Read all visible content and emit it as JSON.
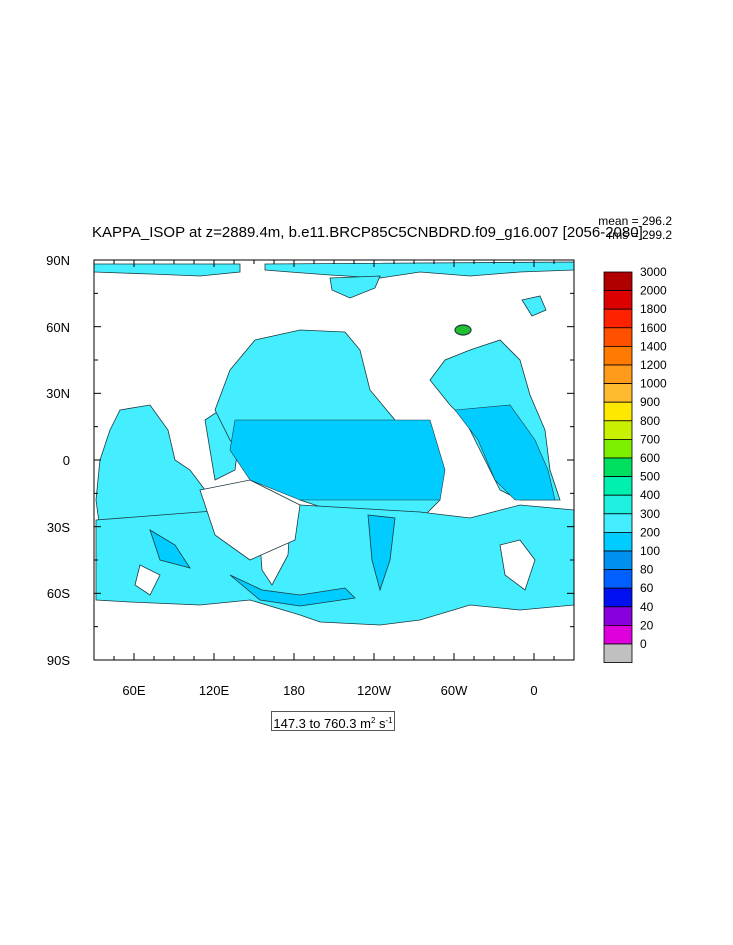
{
  "title": "KAPPA_ISOP at z=2889.4m, b.e11.BRCP85C5CNBDRD.f09_g16.007 [2056-2080]",
  "stats": {
    "mean": "mean = 296.2",
    "rms": "rms = 299.2"
  },
  "lat_labels": [
    "90N",
    "60N",
    "30N",
    "0",
    "30S",
    "60S",
    "90S"
  ],
  "lon_labels": [
    "60E",
    "120E",
    "180",
    "120W",
    "60W",
    "0"
  ],
  "range": {
    "text": "147.3 to 760.3 m",
    "sup1": "2",
    "mid": " s",
    "sup2": "-1"
  },
  "colorbar": {
    "labels": [
      "3000",
      "2000",
      "1800",
      "1600",
      "1400",
      "1200",
      "1000",
      "900",
      "800",
      "700",
      "600",
      "500",
      "400",
      "300",
      "200",
      "100",
      "80",
      "60",
      "40",
      "20",
      "0"
    ],
    "colors": [
      "#b00000",
      "#dd0000",
      "#ff2200",
      "#ff5000",
      "#ff7a00",
      "#ff9a1a",
      "#ffba30",
      "#ffe800",
      "#c8f000",
      "#7cf000",
      "#00e060",
      "#00f0b0",
      "#20f0e0",
      "#45eeff",
      "#00ccff",
      "#0090f0",
      "#0060ff",
      "#0010f0",
      "#8800dd",
      "#dd00dd",
      "#c0c0c0"
    ]
  }
}
